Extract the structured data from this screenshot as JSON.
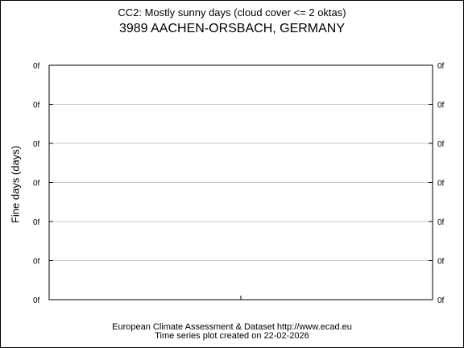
{
  "chart_data": {
    "type": "line",
    "title": "CC2: Mostly sunny days (cloud cover <= 2 oktas)",
    "subtitle": "3989 AACHEN-ORSBACH, GERMANY",
    "ylabel": "Fine days (days)",
    "xlabel": "",
    "y_tick_labels": [
      "0f",
      "0f",
      "0f",
      "0f",
      "0f",
      "0f",
      "0f"
    ],
    "y_ticks_right": true,
    "grid": "horizontal",
    "series": [],
    "colors": {
      "frame": "#000000",
      "grid": "#c8c8c8",
      "background": "#ffffff"
    }
  },
  "footer": {
    "line1": "European Climate Assessment & Dataset  http://www.ecad.eu",
    "line2": "Time series plot created on 22-02-2026"
  }
}
